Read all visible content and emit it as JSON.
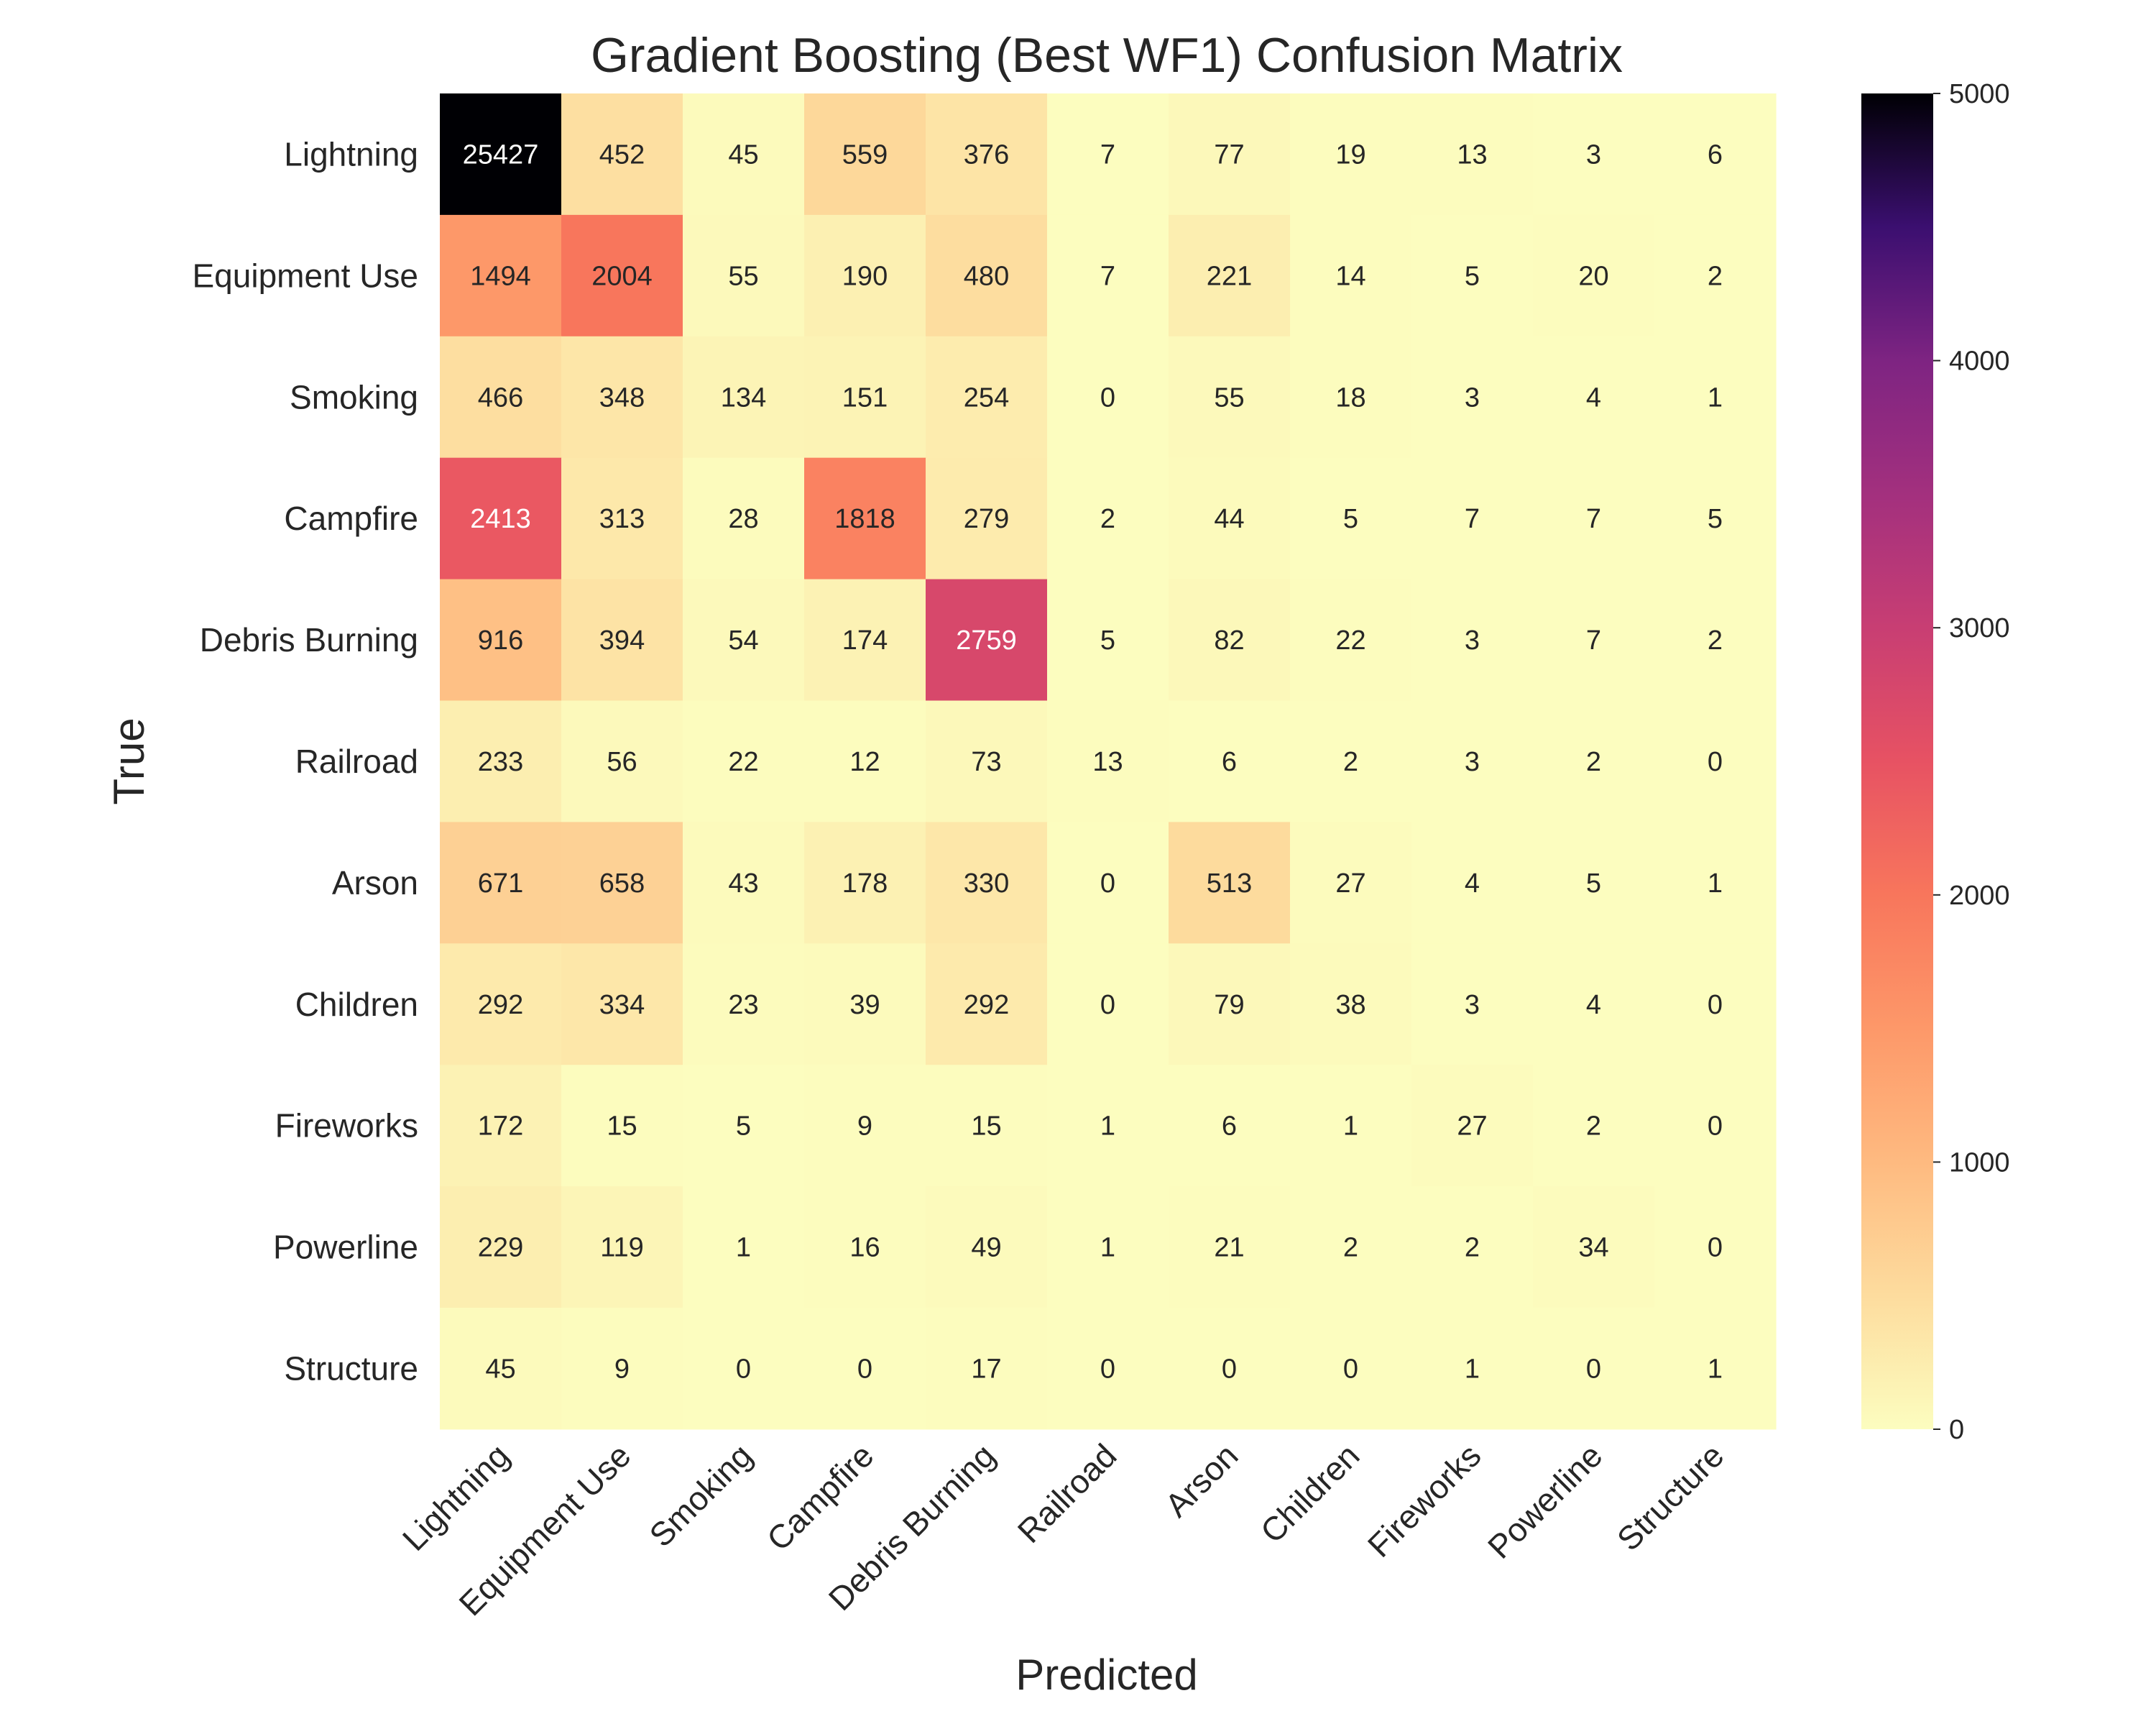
{
  "chart_data": {
    "type": "heatmap",
    "title": "Gradient Boosting (Best WF1) Confusion Matrix",
    "xlabel": "Predicted",
    "ylabel": "True",
    "x_categories": [
      "Lightning",
      "Equipment Use",
      "Smoking",
      "Campfire",
      "Debris Burning",
      "Railroad",
      "Arson",
      "Children",
      "Fireworks",
      "Powerline",
      "Structure"
    ],
    "y_categories": [
      "Lightning",
      "Equipment Use",
      "Smoking",
      "Campfire",
      "Debris Burning",
      "Railroad",
      "Arson",
      "Children",
      "Fireworks",
      "Powerline",
      "Structure"
    ],
    "values": [
      [
        25427,
        452,
        45,
        559,
        376,
        7,
        77,
        19,
        13,
        3,
        6
      ],
      [
        1494,
        2004,
        55,
        190,
        480,
        7,
        221,
        14,
        5,
        20,
        2
      ],
      [
        466,
        348,
        134,
        151,
        254,
        0,
        55,
        18,
        3,
        4,
        1
      ],
      [
        2413,
        313,
        28,
        1818,
        279,
        2,
        44,
        5,
        7,
        7,
        5
      ],
      [
        916,
        394,
        54,
        174,
        2759,
        5,
        82,
        22,
        3,
        7,
        2
      ],
      [
        233,
        56,
        22,
        12,
        73,
        13,
        6,
        2,
        3,
        2,
        0
      ],
      [
        671,
        658,
        43,
        178,
        330,
        0,
        513,
        27,
        4,
        5,
        1
      ],
      [
        292,
        334,
        23,
        39,
        292,
        0,
        79,
        38,
        3,
        4,
        0
      ],
      [
        172,
        15,
        5,
        9,
        15,
        1,
        6,
        1,
        27,
        2,
        0
      ],
      [
        229,
        119,
        1,
        16,
        49,
        1,
        21,
        2,
        2,
        34,
        0
      ],
      [
        45,
        9,
        0,
        0,
        17,
        0,
        0,
        0,
        1,
        0,
        1
      ]
    ],
    "vmin": 0,
    "vmax": 5000,
    "colormap": "magma_r",
    "colorbar_ticks": [
      0,
      1000,
      2000,
      3000,
      4000,
      5000
    ],
    "grid": false,
    "legend": "colorbar-right"
  }
}
